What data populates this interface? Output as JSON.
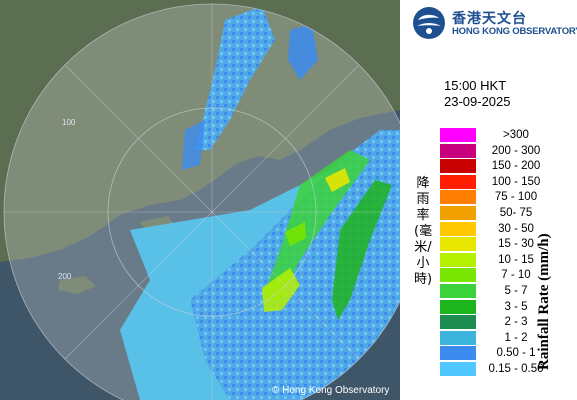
{
  "header": {
    "org_name_zh": "香港天文台",
    "org_name_en": "HONG KONG OBSERVATORY"
  },
  "timestamp": {
    "time": "15:00 HKT",
    "date": "23-09-2025"
  },
  "legend": {
    "title_en": "Rainfall Rate (mm/h)",
    "title_zh": "降雨率(毫米/小時)",
    "items": [
      {
        "label": ">300",
        "color": "#ff00ff"
      },
      {
        "label": "200 - 300",
        "color": "#c8007d"
      },
      {
        "label": "150 - 200",
        "color": "#c80000"
      },
      {
        "label": "100 - 150",
        "color": "#ff1e00"
      },
      {
        "label": "75 - 100",
        "color": "#ff7d00"
      },
      {
        "label": "50- 75",
        "color": "#f0a000"
      },
      {
        "label": "30 - 50",
        "color": "#ffc800"
      },
      {
        "label": "15 - 30",
        "color": "#e6e600"
      },
      {
        "label": "10 - 15",
        "color": "#b4f000"
      },
      {
        "label": "7 - 10",
        "color": "#78e600"
      },
      {
        "label": "5 - 7",
        "color": "#3cd23c"
      },
      {
        "label": "3 - 5",
        "color": "#1eb41e"
      },
      {
        "label": "2 - 3",
        "color": "#1e8c50"
      },
      {
        "label": "1 - 2",
        "color": "#3cb4dc"
      },
      {
        "label": "0.50 - 1",
        "color": "#3c8cf0"
      },
      {
        "label": "0.15 - 0.50",
        "color": "#50c8ff"
      }
    ]
  },
  "map": {
    "range_labels": [
      "100",
      "200"
    ],
    "copyright": "© Hong Kong Observatory"
  },
  "colors": {
    "sea": "#3f5568",
    "land": "#5b6e52",
    "range_ring": "#c8d2dc"
  }
}
